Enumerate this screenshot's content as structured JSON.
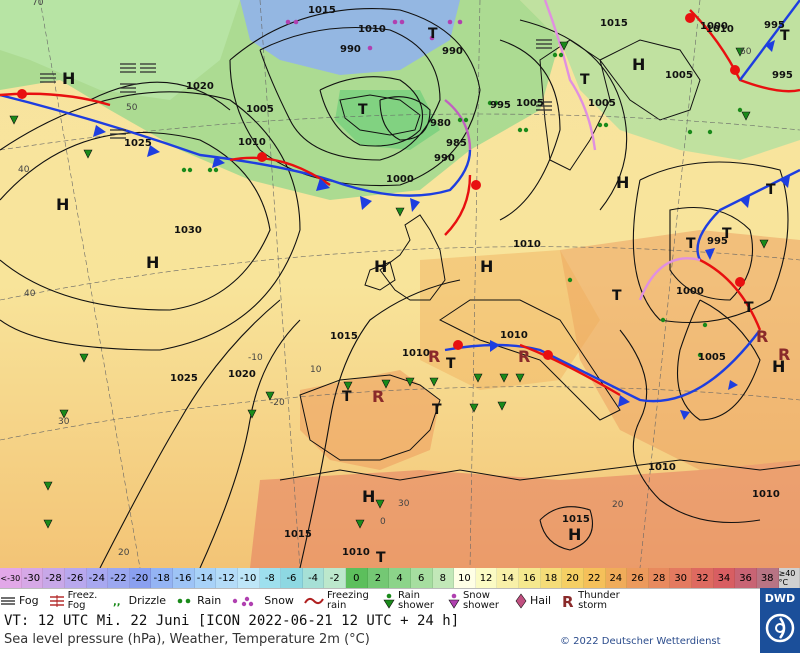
{
  "map": {
    "isobar_labels": [
      {
        "t": "1015"
      },
      {
        "t": "1010"
      },
      {
        "t": "1015"
      },
      {
        "t": "1020"
      },
      {
        "t": "1005"
      },
      {
        "t": "1010"
      },
      {
        "t": "995"
      },
      {
        "t": "990"
      },
      {
        "t": "995"
      },
      {
        "t": "980"
      },
      {
        "t": "985"
      },
      {
        "t": "990"
      },
      {
        "t": "1000"
      },
      {
        "t": "1005"
      },
      {
        "t": "1005"
      },
      {
        "t": "1000"
      },
      {
        "t": "1025"
      },
      {
        "t": "1030"
      },
      {
        "t": "1025"
      },
      {
        "t": "1020"
      },
      {
        "t": "1015"
      },
      {
        "t": "1010"
      },
      {
        "t": "1010"
      },
      {
        "t": "995"
      },
      {
        "t": "1000"
      },
      {
        "t": "1005"
      },
      {
        "t": "1010"
      },
      {
        "t": "1005"
      },
      {
        "t": "1015"
      },
      {
        "t": "1010"
      },
      {
        "t": "1015"
      },
      {
        "t": "1010"
      },
      {
        "t": "1010"
      },
      {
        "t": "995"
      },
      {
        "t": "990"
      },
      {
        "t": "1010"
      }
    ],
    "pressure_centers": [
      {
        "t": "H"
      },
      {
        "t": "H"
      },
      {
        "t": "H"
      },
      {
        "t": "H"
      },
      {
        "t": "H"
      },
      {
        "t": "H"
      },
      {
        "t": "H"
      },
      {
        "t": "H"
      },
      {
        "t": "H"
      },
      {
        "t": "H"
      }
    ],
    "troughs": [
      {
        "t": "T"
      },
      {
        "t": "T"
      },
      {
        "t": "T"
      },
      {
        "t": "T"
      },
      {
        "t": "T"
      },
      {
        "t": "T"
      },
      {
        "t": "T"
      },
      {
        "t": "T"
      },
      {
        "t": "T"
      },
      {
        "t": "T"
      },
      {
        "t": "T"
      },
      {
        "t": "T"
      },
      {
        "t": "T"
      }
    ],
    "lat_labels": [
      {
        "t": "40"
      },
      {
        "t": "40"
      },
      {
        "t": "50"
      },
      {
        "t": "60"
      },
      {
        "t": "30"
      },
      {
        "t": "20"
      },
      {
        "t": "30"
      },
      {
        "t": "20"
      },
      {
        "t": "0"
      },
      {
        "t": "-20"
      },
      {
        "t": "-10"
      },
      {
        "t": "10"
      },
      {
        "t": "70"
      }
    ]
  },
  "scale": [
    {
      "label": "<-30",
      "color": "#e2a8e8"
    },
    {
      "label": "-30",
      "color": "#d6a8e6"
    },
    {
      "label": "-28",
      "color": "#c8a8e8"
    },
    {
      "label": "-26",
      "color": "#b8a8ee"
    },
    {
      "label": "-24",
      "color": "#a8a8f0"
    },
    {
      "label": "-22",
      "color": "#9ca8f0"
    },
    {
      "label": "-20",
      "color": "#8aa0f0"
    },
    {
      "label": "-18",
      "color": "#94b4f4"
    },
    {
      "label": "-16",
      "color": "#9ec4f6"
    },
    {
      "label": "-14",
      "color": "#a8d2f8"
    },
    {
      "label": "-12",
      "color": "#b4dcf8"
    },
    {
      "label": "-10",
      "color": "#bee6f8"
    },
    {
      "label": "-8",
      "color": "#9ee0ee"
    },
    {
      "label": "-6",
      "color": "#8ed8e2"
    },
    {
      "label": "-4",
      "color": "#a6e0d6"
    },
    {
      "label": "-2",
      "color": "#bce8cc"
    },
    {
      "label": "0",
      "color": "#5cbf5c"
    },
    {
      "label": "2",
      "color": "#74c874"
    },
    {
      "label": "4",
      "color": "#8cd48a"
    },
    {
      "label": "6",
      "color": "#a6dea0"
    },
    {
      "label": "8",
      "color": "#c2e8b8"
    },
    {
      "label": "10",
      "color": "#ffffe6"
    },
    {
      "label": "12",
      "color": "#fbfbc4"
    },
    {
      "label": "14",
      "color": "#f8f0a8"
    },
    {
      "label": "16",
      "color": "#f5e88e"
    },
    {
      "label": "18",
      "color": "#f5dc78"
    },
    {
      "label": "20",
      "color": "#f5cf64"
    },
    {
      "label": "22",
      "color": "#f5c05a"
    },
    {
      "label": "24",
      "color": "#f0ac5a"
    },
    {
      "label": "26",
      "color": "#ec9a5c"
    },
    {
      "label": "28",
      "color": "#e88a5e"
    },
    {
      "label": "30",
      "color": "#e47a60"
    },
    {
      "label": "32",
      "color": "#de6a60"
    },
    {
      "label": "34",
      "color": "#d85e62"
    },
    {
      "label": "36",
      "color": "#c86474"
    },
    {
      "label": "38",
      "color": "#b87484"
    },
    {
      "label": "≥40 °C",
      "color": "#d0d0d0"
    }
  ],
  "legend": {
    "fog": "Fog",
    "freezing_fog": "Freez. Fog",
    "drizzle": "Drizzle",
    "rain": "Rain",
    "snow": "Snow",
    "freezing_rain": "Freezing rain",
    "rain_shower": "Rain shower",
    "snow_shower": "Snow shower",
    "hail": "Hail",
    "thunderstorm": "Thunder storm"
  },
  "info": {
    "valid_time": "VT: 12 UTC Mi.  22 Juni [ICON 2022-06-21  12 UTC + 24 h]",
    "description": "Sea level pressure (hPa), Weather, Temperature 2m (°C)",
    "copyright": "© 2022 Deutscher Wetterdienst",
    "logo": "DWD"
  },
  "icons": [
    "fog-icon",
    "freezing-fog-icon",
    "drizzle-icon",
    "rain-icon",
    "snow-icon",
    "freezing-rain-icon",
    "rain-shower-icon",
    "snow-shower-icon",
    "hail-icon",
    "thunderstorm-icon",
    "dwd-logo-icon"
  ]
}
